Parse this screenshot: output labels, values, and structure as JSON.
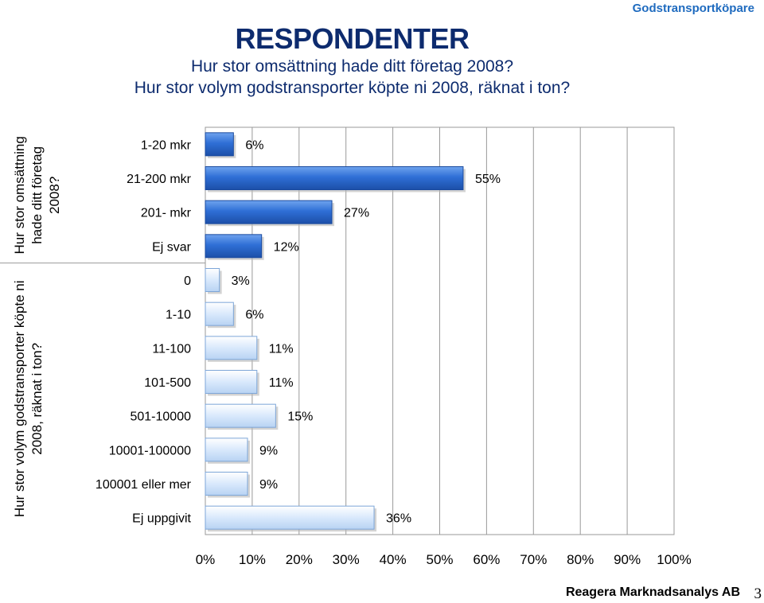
{
  "header": {
    "corner_label": "Godstransportköpare",
    "title": "RESPONDENTER",
    "subtitle_1": "Hur stor omsättning hade ditt företag 2008?",
    "subtitle_2": "Hur stor volym godstransporter köpte ni 2008, räknat i ton?"
  },
  "chart_data": {
    "type": "bar",
    "orientation": "horizontal",
    "xlim": [
      0,
      100
    ],
    "x_ticks": [
      "0%",
      "10%",
      "20%",
      "30%",
      "40%",
      "50%",
      "60%",
      "70%",
      "80%",
      "90%",
      "100%"
    ],
    "groups": [
      {
        "label_lines": [
          "Hur stor omsättning",
          "hade ditt företag",
          "2008?"
        ],
        "color": "#2f6fd6",
        "categories": [
          "1-20 mkr",
          "21-200 mkr",
          "201- mkr",
          "Ej svar"
        ],
        "values": [
          6,
          55,
          27,
          12
        ],
        "value_labels": [
          "6%",
          "55%",
          "27%",
          "12%"
        ]
      },
      {
        "label_lines": [
          "Hur stor volym godstransporter köpte ni",
          "2008, räknat i ton?"
        ],
        "color": "#cfe3fb",
        "categories": [
          "0",
          "1-10",
          "11-100",
          "101-500",
          "501-10000",
          "10001-100000",
          "100001 eller mer",
          "Ej uppgivit"
        ],
        "values": [
          3,
          6,
          11,
          11,
          15,
          9,
          9,
          36
        ],
        "value_labels": [
          "3%",
          "6%",
          "11%",
          "11%",
          "15%",
          "9%",
          "9%",
          "36%"
        ]
      }
    ]
  },
  "footer": {
    "company": "Reagera Marknadsanalys AB",
    "page_number": "3"
  }
}
